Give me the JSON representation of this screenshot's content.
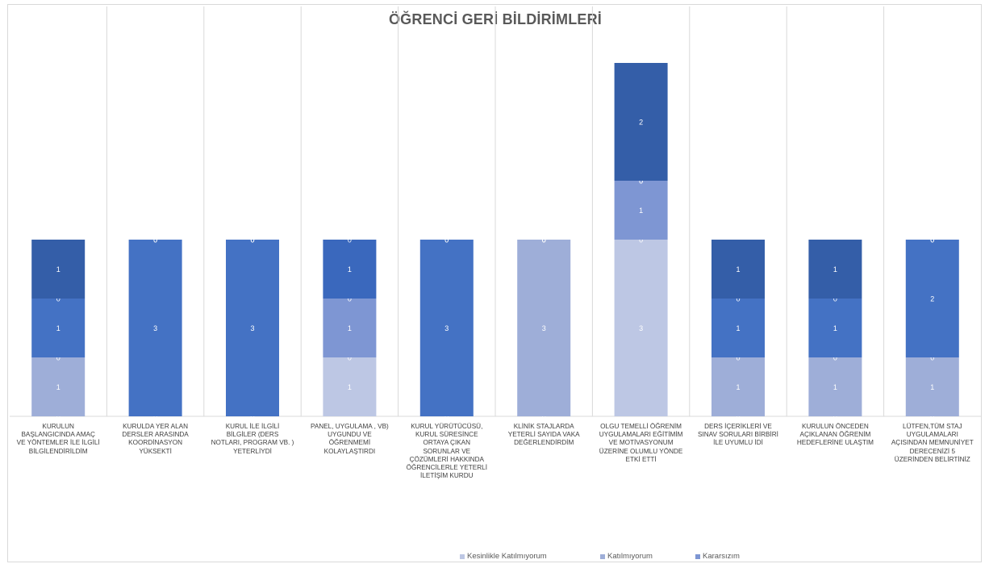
{
  "chart_data": {
    "type": "bar",
    "stacked": true,
    "title": "ÖĞRENCİ GERİ BİLDİRİMLERİ",
    "categories": [
      "KURULUN BAŞLANGICINDA AMAÇ VE YÖNTEMLER İLE İLGİLİ BİLGİLENDİRİLDİM",
      "KURULDA YER ALAN DERSLER ARASINDA KOORDİNASYON YÜKSEKTİ",
      "KURUL İLE İLGİLİ BİLGİLER (DERS NOTLARI, PROGRAM VB. ) YETERLİYDİ",
      "PANEL, UYGULAMA , VB) UYGUNDU VE ÖĞRENMEMİ KOLAYLAŞTIRDI",
      "KURUL YÜRÜTÜCÜSÜ, KURUL SÜRESİNCE ORTAYA ÇIKAN SORUNLAR VE ÇÖZÜMLERİ HAKKINDA ÖĞRENCİLERLE YETERLİ İLETİŞİM KURDU",
      "KLİNİK STAJLARDA YETERLİ SAYIDA VAKA DEĞERLENDİRDİM",
      "OLGU TEMELLİ ÖĞRENİM UYGULAMALARI EĞİTİMİM VE MOTİVASYONUM ÜZERİNE OLUMLU YÖNDE ETKİ ETTİ",
      "DERS İÇERİKLERİ VE SINAV SORULARI BİRBİRİ İLE UYUMLU İDİ",
      "KURULUN ÖNCEDEN AÇIKLANAN ÖĞRENİM HEDEFLERİNE ULAŞTIM",
      "LÜTFEN,TÜM STAJ UYGULAMALARI AÇISINDAN MEMNUNİYET DERECENİZİ 5 ÜZERİNDEN BELİRTİNİZ"
    ],
    "series": [
      {
        "name": "Kesinlikle Katılmıyorum",
        "color": "#bdc7e4",
        "values": [
          0,
          0,
          0,
          1,
          0,
          0,
          3,
          0,
          0,
          0
        ]
      },
      {
        "name": "Katılmıyorum",
        "color": "#9eaed8",
        "values": [
          1,
          0,
          0,
          0,
          0,
          3,
          0,
          1,
          1,
          1
        ]
      },
      {
        "name": "Kararsızım",
        "color": "#7e96d3",
        "values": [
          0,
          0,
          0,
          1,
          0,
          0,
          1,
          0,
          0,
          0
        ]
      },
      {
        "name": "",
        "color": "#4472c4",
        "values": [
          1,
          3,
          3,
          0,
          3,
          0,
          0,
          1,
          1,
          2
        ]
      },
      {
        "name": "",
        "color": "#3a68bd",
        "values": [
          0,
          0,
          0,
          1,
          0,
          0,
          0,
          0,
          0,
          0
        ]
      },
      {
        "name": "",
        "color": "#345ea8",
        "values": [
          1,
          0,
          0,
          0,
          0,
          0,
          2,
          1,
          1,
          0
        ]
      }
    ],
    "legend": {
      "position": "bottom",
      "entries": [
        "Kesinlikle Katılmıyorum",
        "Katılmıyorum",
        "Kararsızım"
      ]
    },
    "ylim": [
      0,
      6
    ],
    "grid": "vertical category separators"
  }
}
